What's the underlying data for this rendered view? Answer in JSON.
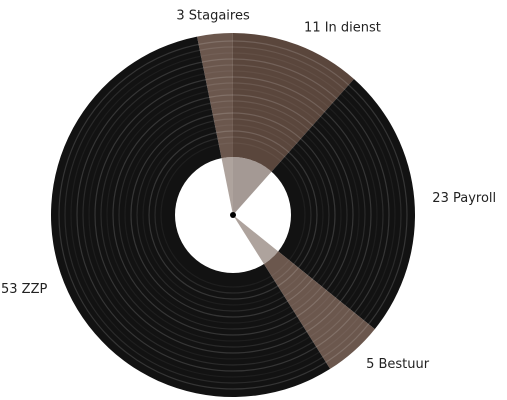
{
  "chart_data": {
    "type": "pie",
    "values": [
      3,
      11,
      23,
      5,
      53
    ],
    "value_labels": [
      "3 Stagaires",
      "11 In dienst",
      "23 Payroll",
      "5 Bestuur",
      "53 ZZP"
    ],
    "colors": [
      "#6b574d",
      "#5a463c",
      "#121212",
      "#6b574d",
      "#121212"
    ]
  }
}
